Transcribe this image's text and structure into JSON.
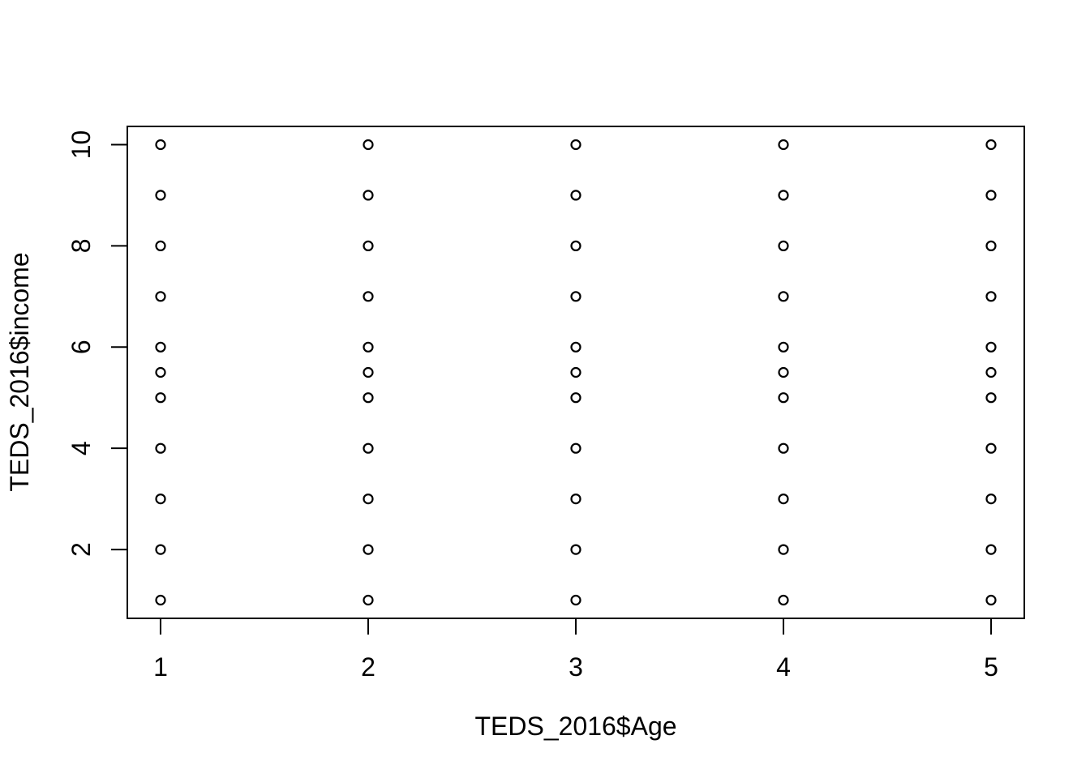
{
  "page": {
    "background_color": "#FFFFFF",
    "foreground_color": "#000000"
  },
  "chart_data": {
    "type": "scatter",
    "title": "",
    "xlabel": "TEDS_2016$Age",
    "ylabel": "TEDS_2016$income",
    "x_tick_values": [
      1,
      2,
      3,
      4,
      5
    ],
    "x_tick_labels": [
      "1",
      "2",
      "3",
      "4",
      "5"
    ],
    "y_tick_values": [
      2,
      4,
      6,
      8,
      10
    ],
    "y_tick_labels": [
      "2",
      "4",
      "6",
      "8",
      "10"
    ],
    "xlim": [
      0.84,
      5.16
    ],
    "ylim": [
      0.64,
      10.36
    ],
    "grid": false,
    "legend": null,
    "marker": {
      "shape": "open-circle",
      "color": "#000000"
    },
    "y_levels_per_column": [
      1,
      2,
      3,
      4,
      5,
      5.5,
      6,
      7,
      8,
      9,
      10
    ],
    "series": [
      {
        "name": "points",
        "x": [
          1,
          1,
          1,
          1,
          1,
          1,
          1,
          1,
          1,
          1,
          1,
          2,
          2,
          2,
          2,
          2,
          2,
          2,
          2,
          2,
          2,
          2,
          3,
          3,
          3,
          3,
          3,
          3,
          3,
          3,
          3,
          3,
          3,
          4,
          4,
          4,
          4,
          4,
          4,
          4,
          4,
          4,
          4,
          4,
          5,
          5,
          5,
          5,
          5,
          5,
          5,
          5,
          5,
          5,
          5
        ],
        "y": [
          1,
          2,
          3,
          4,
          5,
          5.5,
          6,
          7,
          8,
          9,
          10,
          1,
          2,
          3,
          4,
          5,
          5.5,
          6,
          7,
          8,
          9,
          10,
          1,
          2,
          3,
          4,
          5,
          5.5,
          6,
          7,
          8,
          9,
          10,
          1,
          2,
          3,
          4,
          5,
          5.5,
          6,
          7,
          8,
          9,
          10,
          1,
          2,
          3,
          4,
          5,
          5.5,
          6,
          7,
          8,
          9,
          10
        ]
      }
    ]
  }
}
